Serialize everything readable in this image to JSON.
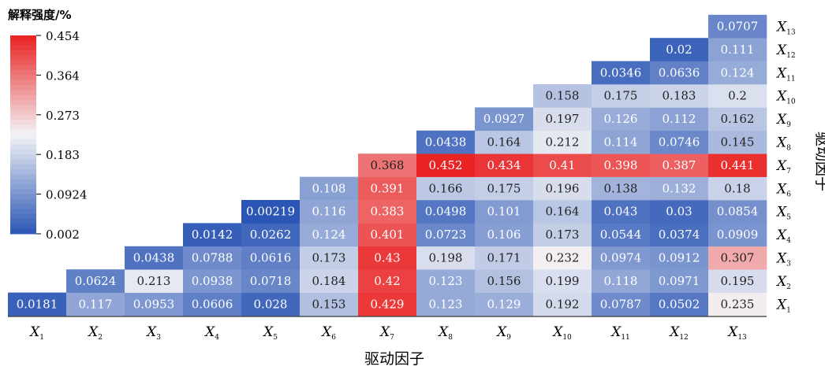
{
  "chart_data": {
    "type": "heatmap",
    "legend": {
      "title": "解释强度/%",
      "ticks": [
        "0.454",
        "0.364",
        "0.273",
        "0.183",
        "0.0924",
        "0.002"
      ],
      "min": 0.002,
      "max": 0.454,
      "colors": {
        "low": "#2b56b5",
        "mid": "#f3f3f6",
        "high": "#ea2222"
      }
    },
    "xlabel": "驱动因子",
    "ylabel": "驱动因子",
    "x_categories": [
      "X1",
      "X2",
      "X3",
      "X4",
      "X5",
      "X6",
      "X7",
      "X8",
      "X9",
      "X10",
      "X11",
      "X12",
      "X13"
    ],
    "y_categories": [
      "X1",
      "X2",
      "X3",
      "X4",
      "X5",
      "X6",
      "X7",
      "X8",
      "X9",
      "X10",
      "X11",
      "X12",
      "X13"
    ],
    "variable_symbol": "X",
    "cells": [
      {
        "x": "X1",
        "y": "X1",
        "value": "0.0181"
      },
      {
        "x": "X2",
        "y": "X1",
        "value": "0.117"
      },
      {
        "x": "X3",
        "y": "X1",
        "value": "0.0953"
      },
      {
        "x": "X4",
        "y": "X1",
        "value": "0.0606"
      },
      {
        "x": "X5",
        "y": "X1",
        "value": "0.028"
      },
      {
        "x": "X6",
        "y": "X1",
        "value": "0.153"
      },
      {
        "x": "X7",
        "y": "X1",
        "value": "0.429"
      },
      {
        "x": "X8",
        "y": "X1",
        "value": "0.123"
      },
      {
        "x": "X9",
        "y": "X1",
        "value": "0.129"
      },
      {
        "x": "X10",
        "y": "X1",
        "value": "0.192"
      },
      {
        "x": "X11",
        "y": "X1",
        "value": "0.0787"
      },
      {
        "x": "X12",
        "y": "X1",
        "value": "0.0502"
      },
      {
        "x": "X13",
        "y": "X1",
        "value": "0.235"
      },
      {
        "x": "X2",
        "y": "X2",
        "value": "0.0624"
      },
      {
        "x": "X3",
        "y": "X2",
        "value": "0.213"
      },
      {
        "x": "X4",
        "y": "X2",
        "value": "0.0938"
      },
      {
        "x": "X5",
        "y": "X2",
        "value": "0.0718"
      },
      {
        "x": "X6",
        "y": "X2",
        "value": "0.184"
      },
      {
        "x": "X7",
        "y": "X2",
        "value": "0.42"
      },
      {
        "x": "X8",
        "y": "X2",
        "value": "0.123"
      },
      {
        "x": "X9",
        "y": "X2",
        "value": "0.156"
      },
      {
        "x": "X10",
        "y": "X2",
        "value": "0.199"
      },
      {
        "x": "X11",
        "y": "X2",
        "value": "0.118"
      },
      {
        "x": "X12",
        "y": "X2",
        "value": "0.0971"
      },
      {
        "x": "X13",
        "y": "X2",
        "value": "0.195"
      },
      {
        "x": "X3",
        "y": "X3",
        "value": "0.0438"
      },
      {
        "x": "X4",
        "y": "X3",
        "value": "0.0788"
      },
      {
        "x": "X5",
        "y": "X3",
        "value": "0.0616"
      },
      {
        "x": "X6",
        "y": "X3",
        "value": "0.173"
      },
      {
        "x": "X7",
        "y": "X3",
        "value": "0.43"
      },
      {
        "x": "X8",
        "y": "X3",
        "value": "0.198"
      },
      {
        "x": "X9",
        "y": "X3",
        "value": "0.171"
      },
      {
        "x": "X10",
        "y": "X3",
        "value": "0.232"
      },
      {
        "x": "X11",
        "y": "X3",
        "value": "0.0974"
      },
      {
        "x": "X12",
        "y": "X3",
        "value": "0.0912"
      },
      {
        "x": "X13",
        "y": "X3",
        "value": "0.307"
      },
      {
        "x": "X4",
        "y": "X4",
        "value": "0.0142"
      },
      {
        "x": "X5",
        "y": "X4",
        "value": "0.0262"
      },
      {
        "x": "X6",
        "y": "X4",
        "value": "0.124"
      },
      {
        "x": "X7",
        "y": "X4",
        "value": "0.401"
      },
      {
        "x": "X8",
        "y": "X4",
        "value": "0.0723"
      },
      {
        "x": "X9",
        "y": "X4",
        "value": "0.106"
      },
      {
        "x": "X10",
        "y": "X4",
        "value": "0.173"
      },
      {
        "x": "X11",
        "y": "X4",
        "value": "0.0544"
      },
      {
        "x": "X12",
        "y": "X4",
        "value": "0.0374"
      },
      {
        "x": "X13",
        "y": "X4",
        "value": "0.0909"
      },
      {
        "x": "X5",
        "y": "X5",
        "value": "0.00219"
      },
      {
        "x": "X6",
        "y": "X5",
        "value": "0.116"
      },
      {
        "x": "X7",
        "y": "X5",
        "value": "0.383"
      },
      {
        "x": "X8",
        "y": "X5",
        "value": "0.0498"
      },
      {
        "x": "X9",
        "y": "X5",
        "value": "0.101"
      },
      {
        "x": "X10",
        "y": "X5",
        "value": "0.164"
      },
      {
        "x": "X11",
        "y": "X5",
        "value": "0.043"
      },
      {
        "x": "X12",
        "y": "X5",
        "value": "0.03"
      },
      {
        "x": "X13",
        "y": "X5",
        "value": "0.0854"
      },
      {
        "x": "X6",
        "y": "X6",
        "value": "0.108"
      },
      {
        "x": "X7",
        "y": "X6",
        "value": "0.391"
      },
      {
        "x": "X8",
        "y": "X6",
        "value": "0.166"
      },
      {
        "x": "X9",
        "y": "X6",
        "value": "0.175"
      },
      {
        "x": "X10",
        "y": "X6",
        "value": "0.196"
      },
      {
        "x": "X11",
        "y": "X6",
        "value": "0.138"
      },
      {
        "x": "X12",
        "y": "X6",
        "value": "0.132"
      },
      {
        "x": "X13",
        "y": "X6",
        "value": "0.18"
      },
      {
        "x": "X7",
        "y": "X7",
        "value": "0.368"
      },
      {
        "x": "X8",
        "y": "X7",
        "value": "0.452"
      },
      {
        "x": "X9",
        "y": "X7",
        "value": "0.434"
      },
      {
        "x": "X10",
        "y": "X7",
        "value": "0.41"
      },
      {
        "x": "X11",
        "y": "X7",
        "value": "0.398"
      },
      {
        "x": "X12",
        "y": "X7",
        "value": "0.387"
      },
      {
        "x": "X13",
        "y": "X7",
        "value": "0.441"
      },
      {
        "x": "X8",
        "y": "X8",
        "value": "0.0438"
      },
      {
        "x": "X9",
        "y": "X8",
        "value": "0.164"
      },
      {
        "x": "X10",
        "y": "X8",
        "value": "0.212"
      },
      {
        "x": "X11",
        "y": "X8",
        "value": "0.114"
      },
      {
        "x": "X12",
        "y": "X8",
        "value": "0.0746"
      },
      {
        "x": "X13",
        "y": "X8",
        "value": "0.145"
      },
      {
        "x": "X9",
        "y": "X9",
        "value": "0.0927"
      },
      {
        "x": "X10",
        "y": "X9",
        "value": "0.197"
      },
      {
        "x": "X11",
        "y": "X9",
        "value": "0.126"
      },
      {
        "x": "X12",
        "y": "X9",
        "value": "0.112"
      },
      {
        "x": "X13",
        "y": "X9",
        "value": "0.162"
      },
      {
        "x": "X10",
        "y": "X10",
        "value": "0.158"
      },
      {
        "x": "X11",
        "y": "X10",
        "value": "0.175"
      },
      {
        "x": "X12",
        "y": "X10",
        "value": "0.183"
      },
      {
        "x": "X13",
        "y": "X10",
        "value": "0.2"
      },
      {
        "x": "X11",
        "y": "X11",
        "value": "0.0346"
      },
      {
        "x": "X12",
        "y": "X11",
        "value": "0.0636"
      },
      {
        "x": "X13",
        "y": "X11",
        "value": "0.124"
      },
      {
        "x": "X12",
        "y": "X12",
        "value": "0.02"
      },
      {
        "x": "X13",
        "y": "X12",
        "value": "0.111"
      },
      {
        "x": "X13",
        "y": "X13",
        "value": "0.0707"
      }
    ]
  }
}
